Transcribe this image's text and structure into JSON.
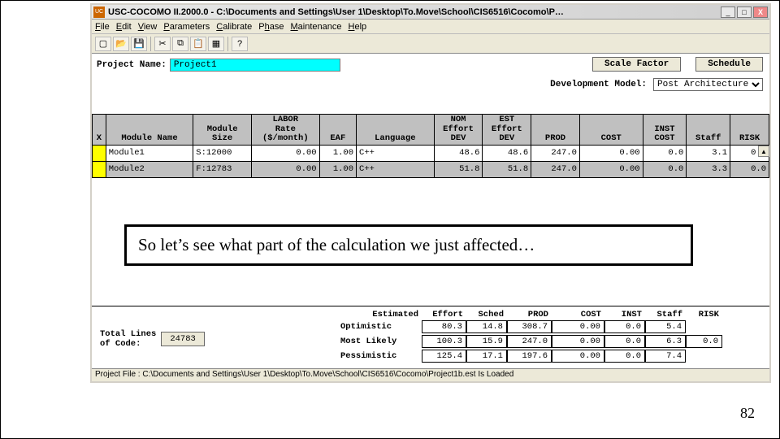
{
  "window": {
    "title": "USC-COCOMO II.2000.0 - C:\\Documents and Settings\\User 1\\Desktop\\To.Move\\School\\CIS6516\\Cocomo\\P…",
    "buttons": {
      "min": "_",
      "max": "□",
      "close": "X"
    }
  },
  "menu": {
    "file": "File",
    "edit": "Edit",
    "view": "View",
    "parameters": "Parameters",
    "calibrate": "Calibrate",
    "phase": "Phase",
    "maintenance": "Maintenance",
    "help": "Help"
  },
  "project": {
    "label": "Project Name:",
    "value": "Project1"
  },
  "buttons": {
    "scale": "Scale Factor",
    "schedule": "Schedule"
  },
  "devmodel": {
    "label": "Development Model:",
    "value": "Post Architecture"
  },
  "grid": {
    "headers": {
      "x": "X",
      "module": "Module Name",
      "size": "Module\nSize",
      "labor": "LABOR\nRate\n($/month)",
      "eaf": "EAF",
      "lang": "Language",
      "nom": "NOM\nEffort\nDEV",
      "est": "EST\nEffort\nDEV",
      "prod": "PROD",
      "cost": "COST",
      "inst": "INST\nCOST",
      "staff": "Staff",
      "risk": "RISK"
    },
    "rows": [
      {
        "module": "Module1",
        "size": "S:12000",
        "labor": "0.00",
        "eaf": "1.00",
        "lang": "C++",
        "nom": "48.6",
        "est": "48.6",
        "prod": "247.0",
        "cost": "0.00",
        "inst": "0.0",
        "staff": "3.1",
        "risk": "0.0"
      },
      {
        "module": "Module2",
        "size": "F:12783",
        "labor": "0.00",
        "eaf": "1.00",
        "lang": "C++",
        "nom": "51.8",
        "est": "51.8",
        "prod": "247.0",
        "cost": "0.00",
        "inst": "0.0",
        "staff": "3.3",
        "risk": "0.0"
      }
    ]
  },
  "callout": "So let’s see what part of the calculation we just affected…",
  "total": {
    "label": "Total Lines\nof Code:",
    "value": "24783"
  },
  "summary": {
    "headlabel": "Estimated",
    "headers": {
      "effort": "Effort",
      "sched": "Sched",
      "prod": "PROD",
      "cost": "COST",
      "inst": "INST",
      "staff": "Staff",
      "risk": "RISK"
    },
    "rows": [
      {
        "label": "Optimistic",
        "effort": "80.3",
        "sched": "14.8",
        "prod": "308.7",
        "cost": "0.00",
        "inst": "0.0",
        "staff": "5.4",
        "risk": ""
      },
      {
        "label": "Most Likely",
        "effort": "100.3",
        "sched": "15.9",
        "prod": "247.0",
        "cost": "0.00",
        "inst": "0.0",
        "staff": "6.3",
        "risk": "0.0"
      },
      {
        "label": "Pessimistic",
        "effort": "125.4",
        "sched": "17.1",
        "prod": "197.6",
        "cost": "0.00",
        "inst": "0.0",
        "staff": "7.4",
        "risk": ""
      }
    ]
  },
  "status": "Project File : C:\\Documents and Settings\\User 1\\Desktop\\To.Move\\School\\CIS6516\\Cocomo\\Project1b.est Is Loaded",
  "page": "82"
}
